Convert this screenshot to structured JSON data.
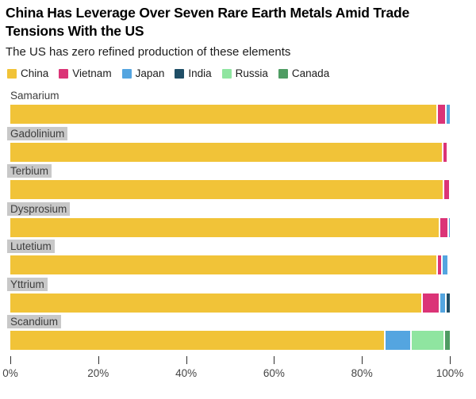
{
  "chart_data": {
    "type": "bar",
    "orientation": "horizontal",
    "stacked": true,
    "unit": "%",
    "title": "China Has Leverage Over Seven Rare Earth Metals Amid Trade Tensions With the US",
    "subtitle": "The US has zero refined production of these elements",
    "legend_position": "top",
    "grid": false,
    "xlim": [
      0,
      100
    ],
    "x_tick_labels": [
      "0%",
      "20%",
      "40%",
      "60%",
      "80%",
      "100%"
    ],
    "categories": [
      {
        "name": "Samarium",
        "label_highlighted": false
      },
      {
        "name": "Gadolinium",
        "label_highlighted": true
      },
      {
        "name": "Terbium",
        "label_highlighted": true
      },
      {
        "name": "Dysprosium",
        "label_highlighted": true
      },
      {
        "name": "Lutetium",
        "label_highlighted": true
      },
      {
        "name": "Yttrium",
        "label_highlighted": true
      },
      {
        "name": "Scandium",
        "label_highlighted": true
      }
    ],
    "series": [
      {
        "name": "China",
        "color": "#F1C338",
        "values": [
          97,
          98.2,
          98.3,
          97.5,
          97,
          93.5,
          85
        ]
      },
      {
        "name": "Vietnam",
        "color": "#DB3477",
        "values": [
          2,
          1,
          1.5,
          2,
          1,
          4,
          0
        ]
      },
      {
        "name": "Japan",
        "color": "#54A5E0",
        "values": [
          1,
          0,
          0,
          0.5,
          1.5,
          1.5,
          6
        ]
      },
      {
        "name": "India",
        "color": "#1F4E66",
        "values": [
          0,
          0,
          0,
          0,
          0,
          1,
          0
        ]
      },
      {
        "name": "Russia",
        "color": "#8FE5A0",
        "values": [
          0,
          0,
          0,
          0,
          0,
          0,
          7.5
        ]
      },
      {
        "name": "Canada",
        "color": "#4F9C63",
        "values": [
          0,
          0,
          0,
          0,
          0,
          0,
          1.5
        ]
      }
    ]
  },
  "colors": {
    "category_label_background": "#C8C8C8",
    "category_label_text": "#3D3D3D",
    "title_text": "#000000",
    "axis_text": "#454545"
  }
}
